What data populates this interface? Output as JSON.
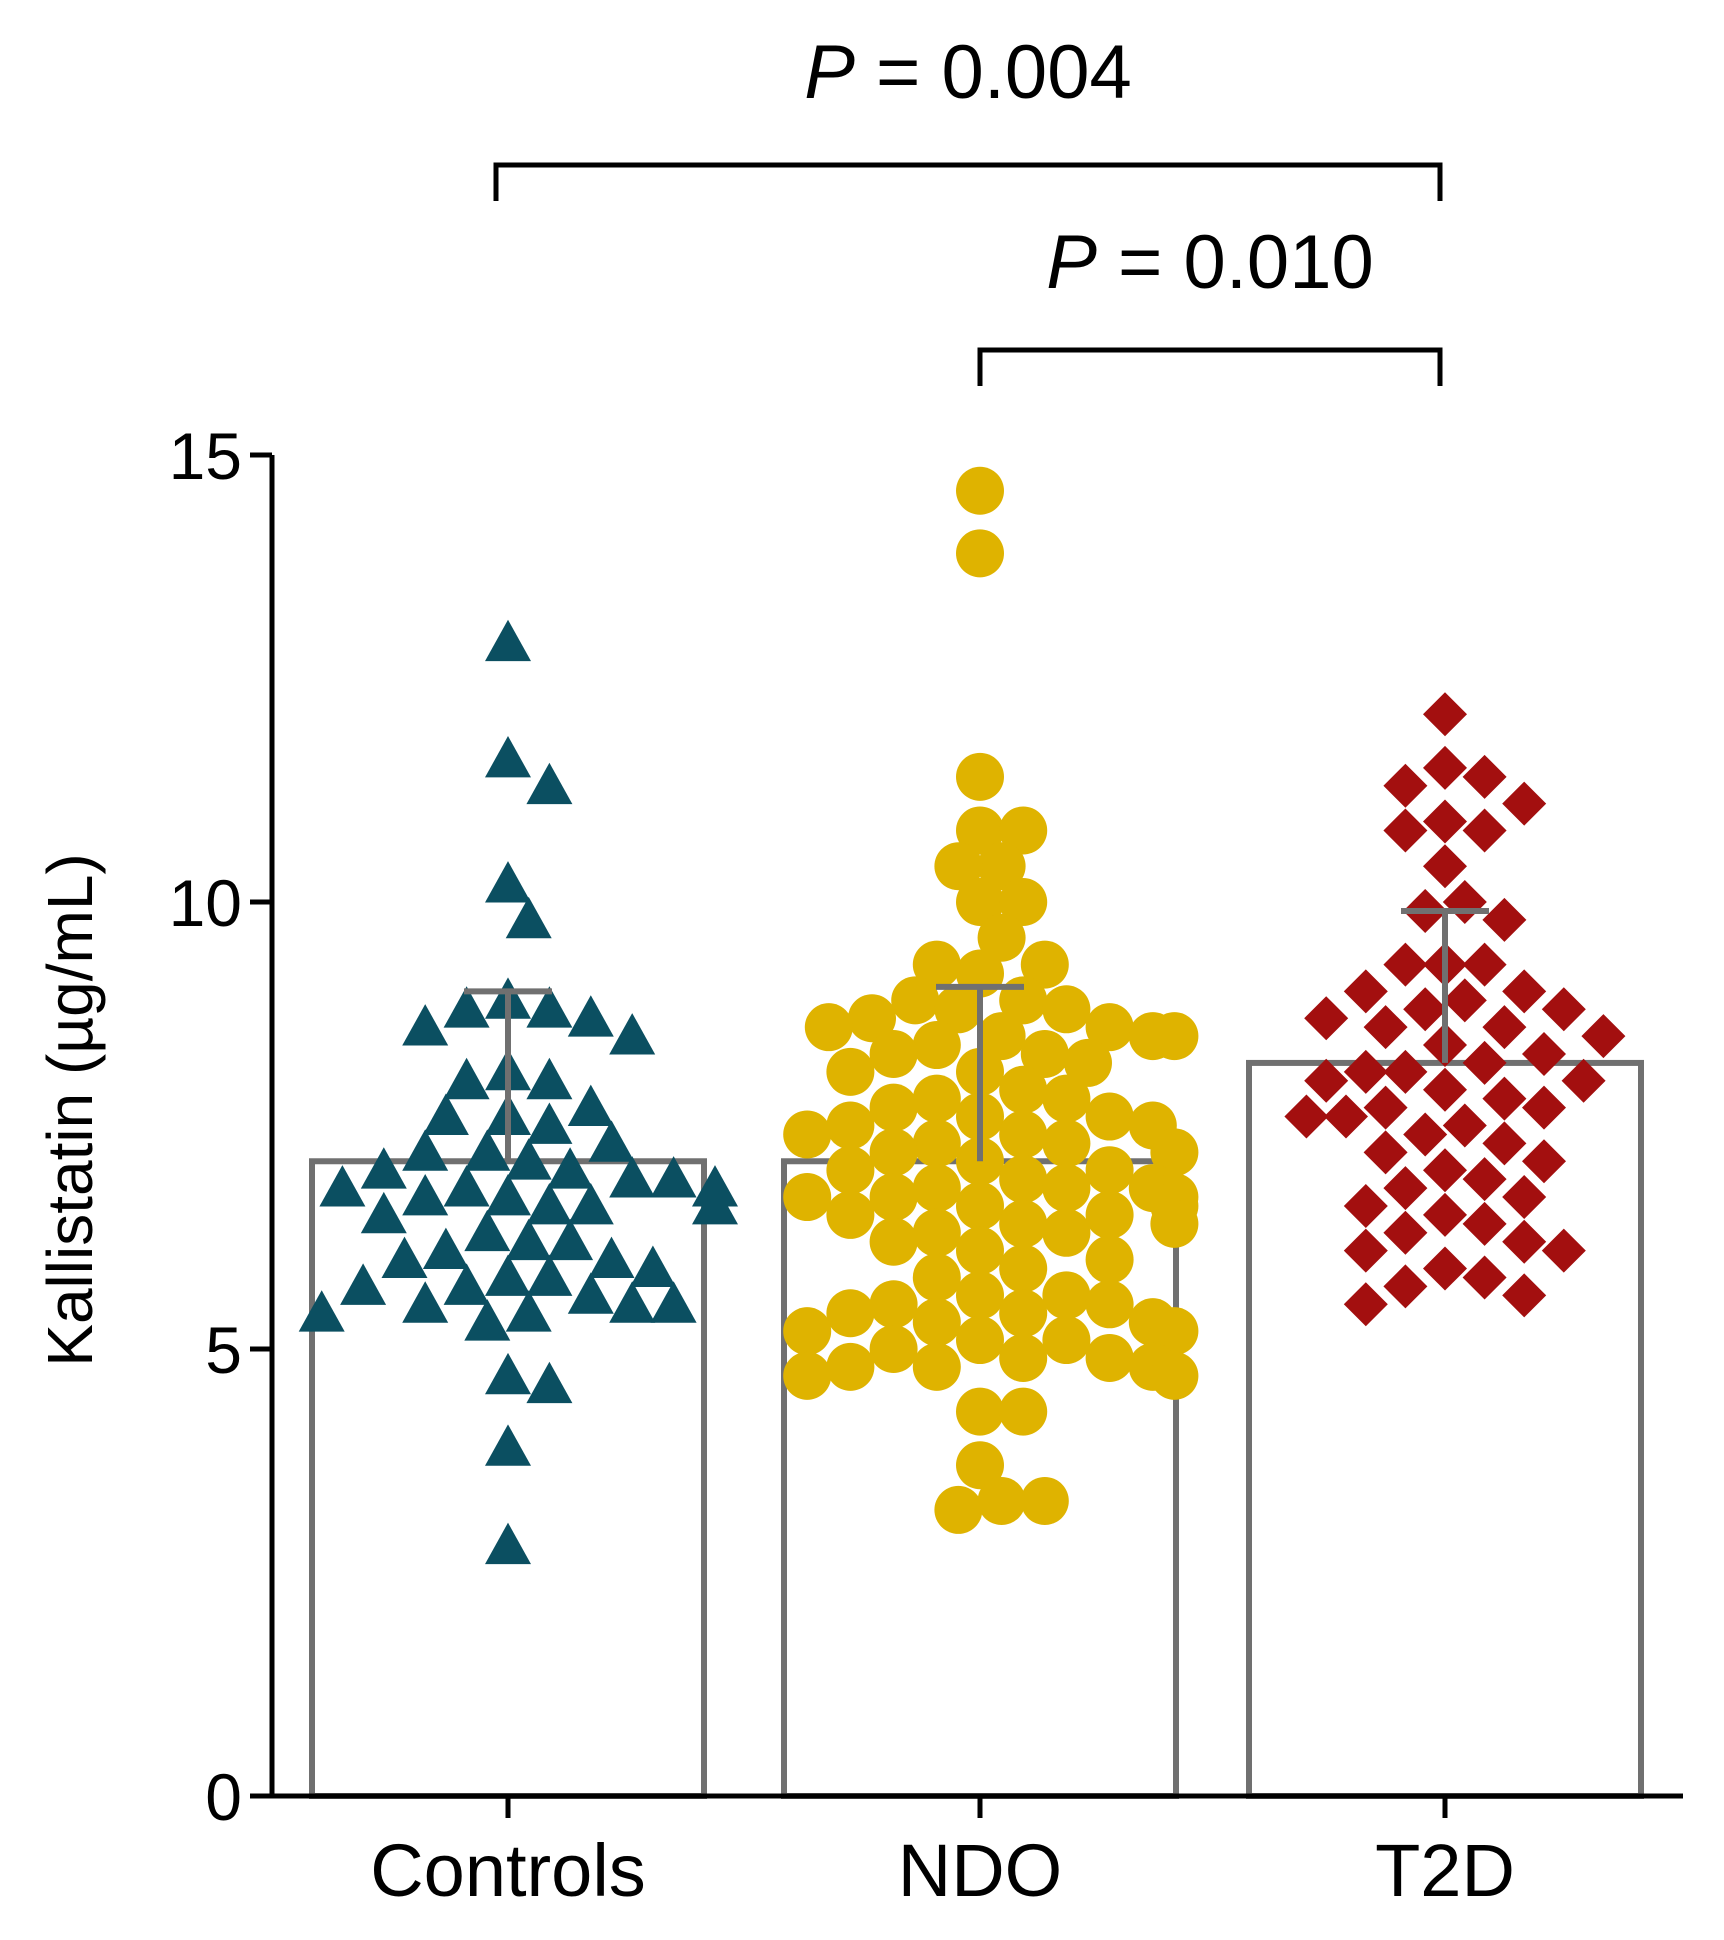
{
  "chart_data": {
    "type": "bar",
    "ylabel": "Kallistatin (µg/mL)",
    "xlabel": "",
    "ylim": [
      0,
      15
    ],
    "yticks": [
      0,
      5,
      10,
      15
    ],
    "categories": [
      "Controls",
      "NDO",
      "T2D"
    ],
    "grid": false,
    "series": [
      {
        "name": "Controls",
        "marker": "triangle",
        "color": "#0b4f61",
        "mean": 7.1,
        "error_upper": 9.0,
        "points": [
          12.9,
          11.6,
          11.3,
          10.2,
          9.8,
          8.9,
          8.8,
          8.8,
          8.7,
          8.6,
          8.5,
          8.1,
          8.0,
          8.0,
          7.7,
          7.6,
          7.6,
          7.5,
          7.3,
          7.2,
          7.2,
          7.1,
          7.0,
          7.0,
          6.9,
          6.9,
          6.8,
          6.8,
          6.8,
          6.7,
          6.7,
          6.6,
          6.6,
          6.6,
          6.5,
          6.3,
          6.2,
          6.2,
          6.1,
          6.0,
          6.0,
          5.9,
          5.8,
          5.8,
          5.7,
          5.7,
          5.6,
          5.5,
          5.5,
          5.5,
          5.4,
          5.4,
          5.3,
          4.7,
          4.6,
          3.9,
          2.8
        ]
      },
      {
        "name": "NDO",
        "marker": "circle",
        "color": "#dfb300",
        "mean": 7.1,
        "error_upper": 9.05,
        "points": [
          14.6,
          13.9,
          11.4,
          10.8,
          10.8,
          10.4,
          10.4,
          10.0,
          10.0,
          9.6,
          9.2,
          9.3,
          9.3,
          8.9,
          8.9,
          8.8,
          8.8,
          8.7,
          8.6,
          8.6,
          8.5,
          8.5,
          8.5,
          8.4,
          8.3,
          8.3,
          8.2,
          8.1,
          8.1,
          7.9,
          7.8,
          7.8,
          7.7,
          7.6,
          7.6,
          7.5,
          7.5,
          7.4,
          7.4,
          7.3,
          7.3,
          7.2,
          7.2,
          7.1,
          7.0,
          7.0,
          6.9,
          6.8,
          6.8,
          6.8,
          6.7,
          6.7,
          6.7,
          6.6,
          6.6,
          6.5,
          6.5,
          6.4,
          6.4,
          6.3,
          6.3,
          6.2,
          6.1,
          6.0,
          5.9,
          5.8,
          5.6,
          5.6,
          5.5,
          5.5,
          5.4,
          5.4,
          5.3,
          5.3,
          5.2,
          5.2,
          5.1,
          5.1,
          5.0,
          4.9,
          4.9,
          4.8,
          4.8,
          4.8,
          4.7,
          4.7,
          4.3,
          4.3,
          3.7,
          3.3,
          3.2,
          3.3
        ]
      },
      {
        "name": "T2D",
        "marker": "diamond",
        "color": "#a30f0f",
        "mean": 8.2,
        "error_upper": 9.9,
        "points": [
          12.1,
          11.5,
          11.4,
          11.3,
          11.1,
          10.9,
          10.8,
          10.8,
          10.4,
          10.0,
          9.9,
          9.8,
          9.3,
          9.3,
          9.3,
          9.0,
          9.0,
          8.9,
          8.8,
          8.8,
          8.7,
          8.6,
          8.6,
          8.5,
          8.4,
          8.3,
          8.2,
          8.1,
          8.1,
          8.0,
          8.0,
          7.9,
          7.8,
          7.7,
          7.7,
          7.6,
          7.6,
          7.5,
          7.4,
          7.3,
          7.2,
          7.1,
          7.0,
          6.9,
          6.8,
          6.7,
          6.6,
          6.5,
          6.4,
          6.3,
          6.2,
          6.1,
          6.1,
          5.9,
          5.8,
          5.7,
          5.6,
          5.5
        ]
      }
    ],
    "annotations": [
      {
        "label_italic": "P",
        "label_rest": " = 0.004",
        "from": "Controls",
        "to": "T2D"
      },
      {
        "label_italic": "P",
        "label_rest": " = 0.010",
        "from": "NDO",
        "to": "T2D"
      }
    ]
  }
}
